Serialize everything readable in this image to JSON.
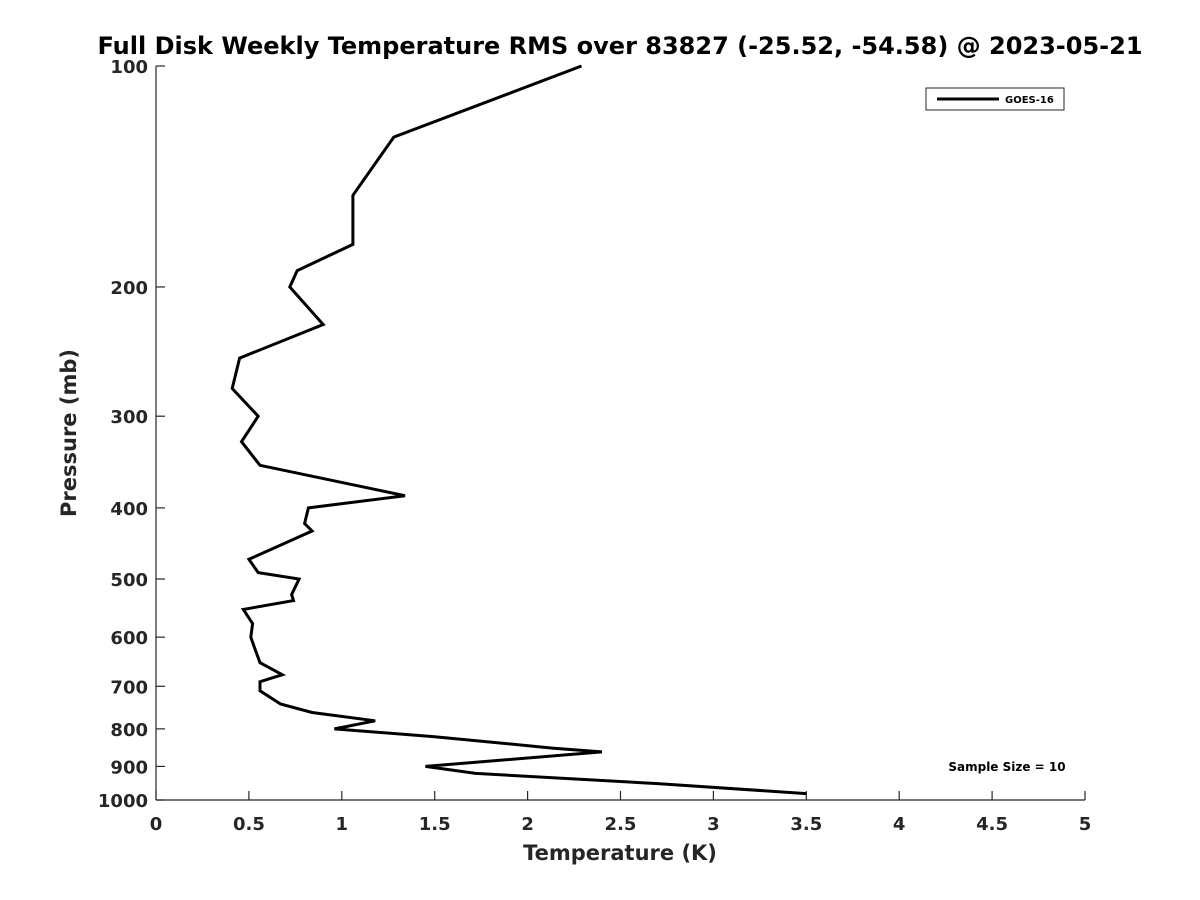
{
  "chart_data": {
    "type": "line",
    "title": "Full Disk Weekly Temperature RMS over 83827 (-25.52, -54.58) @ 2023-05-21",
    "xlabel": "Temperature (K)",
    "ylabel": "Pressure (mb)",
    "xlim": [
      0,
      5
    ],
    "ylim": [
      100,
      1000
    ],
    "y_scale": "log",
    "y_reversed": true,
    "grid": false,
    "legend_position": "top-right",
    "x_ticks": [
      "0",
      "0.5",
      "1",
      "1.5",
      "2",
      "2.5",
      "3",
      "3.5",
      "4",
      "4.5",
      "5"
    ],
    "x_tick_values": [
      0,
      0.5,
      1,
      1.5,
      2,
      2.5,
      3,
      3.5,
      4,
      4.5,
      5
    ],
    "y_ticks": [
      "100",
      "200",
      "300",
      "400",
      "500",
      "600",
      "700",
      "800",
      "900",
      "1000"
    ],
    "y_tick_values": [
      100,
      200,
      300,
      400,
      500,
      600,
      700,
      800,
      900,
      1000
    ],
    "series": [
      {
        "name": "GOES-16",
        "color": "#000000",
        "x": [
          2.29,
          1.28,
          1.06,
          1.06,
          0.76,
          0.72,
          0.9,
          0.45,
          0.41,
          0.55,
          0.46,
          0.56,
          1.34,
          0.82,
          0.8,
          0.84,
          0.5,
          0.55,
          0.77,
          0.73,
          0.74,
          0.47,
          0.52,
          0.51,
          0.53,
          0.56,
          0.68,
          0.56,
          0.56,
          0.67,
          0.84,
          1.18,
          0.96,
          1.5,
          2.14,
          2.4,
          1.45,
          1.72,
          2.7,
          3.5
        ],
        "y": [
          100,
          125,
          150,
          175,
          190,
          200,
          225,
          250,
          275,
          300,
          325,
          350,
          385,
          400,
          420,
          430,
          470,
          490,
          500,
          525,
          535,
          550,
          575,
          600,
          620,
          650,
          675,
          690,
          710,
          740,
          760,
          780,
          800,
          820,
          850,
          860,
          900,
          920,
          950,
          980
        ]
      }
    ],
    "annotation": "Sample Size = 10"
  }
}
